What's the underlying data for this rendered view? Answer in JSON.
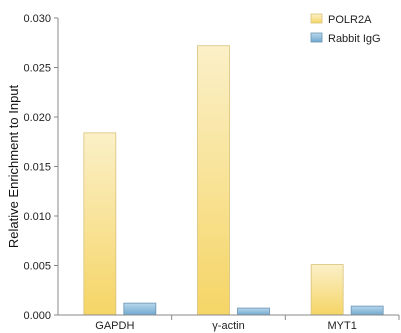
{
  "chart_data": {
    "type": "bar",
    "title": "",
    "xlabel": "",
    "ylabel": "Relative Enrichment to Input",
    "ylim": [
      0,
      0.03
    ],
    "yticks": [
      "0.000",
      "0.005",
      "0.010",
      "0.015",
      "0.020",
      "0.025",
      "0.030"
    ],
    "categories": [
      "GAPDH",
      "γ-actin",
      "MYT1"
    ],
    "series": [
      {
        "name": "POLR2A",
        "values": [
          0.0184,
          0.0272,
          0.0051
        ],
        "color": "#f5d36a"
      },
      {
        "name": "Rabbit IgG",
        "values": [
          0.0012,
          0.0007,
          0.0009
        ],
        "color": "#7fb3d5"
      }
    ],
    "grid": false,
    "legend_position": "top-right"
  }
}
